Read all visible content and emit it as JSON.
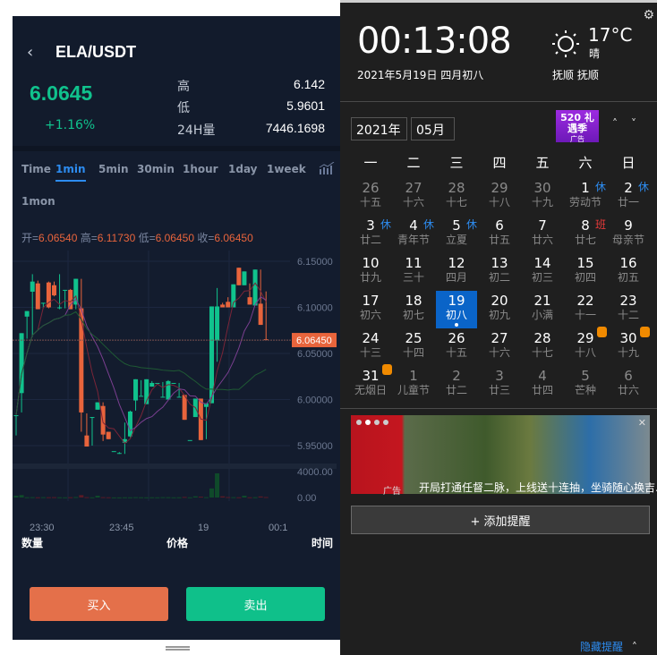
{
  "trading": {
    "back_icon": "chevron-left-icon",
    "pair": "ELA/USDT",
    "price": "6.0645",
    "change": "+1.16%",
    "stats": [
      {
        "label": "高",
        "value": "6.142"
      },
      {
        "label": "低",
        "value": "5.9601"
      },
      {
        "label": "24H量",
        "value": "7446.1698"
      }
    ],
    "tabs": [
      "Time",
      "1min",
      "5min",
      "30min",
      "1hour",
      "1day",
      "1week",
      "1mon"
    ],
    "active_tab": "1min",
    "ohlc": {
      "open_label": "开=",
      "open": "6.06540",
      "high_label": "高=",
      "high": "6.11730",
      "low_label": "低=",
      "low": "6.06450",
      "close_label": "收=",
      "close": "6.06450"
    },
    "orderbook_headers": [
      "数量",
      "价格",
      "时间"
    ],
    "buy_label": "买入",
    "sell_label": "卖出",
    "colors": {
      "up": "#10c28d",
      "down": "#e8643c",
      "accent": "#2d8cf0"
    }
  },
  "chart_data": {
    "type": "candlestick",
    "ylim": [
      5.93,
      6.16
    ],
    "y_ticks": [
      "6.15000",
      "6.10000",
      "6.05000",
      "6.00000",
      "5.95000"
    ],
    "y_tick_values": [
      6.15,
      6.1,
      6.05,
      6.0,
      5.95
    ],
    "last_price_label": "6.06450",
    "last_price": 6.0645,
    "x_ticks": [
      "23:30",
      "23:45",
      "19",
      "00:1"
    ],
    "volume_ticks": [
      "4000.00",
      "0.00"
    ],
    "candles": [
      [
        5.982,
        5.985,
        5.961,
        5.983
      ],
      [
        6.007,
        6.072,
        5.986,
        6.072
      ],
      [
        6.09,
        6.096,
        6.066,
        6.096
      ],
      [
        6.117,
        6.136,
        6.068,
        6.128
      ],
      [
        6.126,
        6.129,
        6.098,
        6.098
      ],
      [
        6.104,
        6.105,
        6.099,
        6.105
      ],
      [
        6.127,
        6.128,
        6.099,
        6.1
      ],
      [
        6.124,
        6.128,
        6.112,
        6.113
      ],
      [
        6.099,
        6.136,
        6.098,
        6.1
      ],
      [
        6.119,
        6.119,
        6.099,
        6.119
      ],
      [
        6.119,
        6.12,
        6.098,
        6.098
      ],
      [
        6.103,
        6.131,
        6.098,
        6.131
      ],
      [
        6.099,
        6.131,
        5.965,
        5.986
      ],
      [
        5.961,
        5.985,
        5.949,
        5.949
      ],
      [
        5.981,
        5.981,
        5.95,
        5.981
      ],
      [
        5.989,
        5.997,
        5.989,
        5.997
      ],
      [
        5.993,
        5.997,
        5.955,
        5.962
      ],
      [
        5.965,
        5.965,
        5.957,
        5.957
      ],
      [
        5.944,
        5.944,
        5.944,
        5.944
      ],
      [
        5.942,
        5.943,
        5.941,
        5.942
      ],
      [
        5.953,
        5.975,
        5.941,
        5.957
      ],
      [
        5.96,
        5.988,
        5.959,
        5.987
      ],
      [
        5.999,
        6.022,
        5.988,
        6.022
      ],
      [
        6.004,
        6.021,
        6.004,
        6.004
      ],
      [
        5.995,
        6.022,
        5.995,
        6.022
      ],
      [
        6.014,
        6.02,
        6.014,
        6.018
      ],
      [
        6.018,
        6.018,
        6.018,
        6.018
      ],
      [
        6.003,
        6.019,
        6.003,
        6.003
      ],
      [
        6.0,
        6.021,
        6.0,
        6.02
      ],
      [
        6.018,
        6.018,
        6.018,
        6.018
      ],
      [
        6.003,
        6.018,
        6.003,
        6.003
      ],
      [
        6.005,
        6.005,
        5.978,
        5.978
      ],
      [
        5.956,
        5.956,
        5.956,
        5.956
      ],
      [
        5.981,
        6.001,
        5.981,
        6.001
      ],
      [
        6.001,
        6.001,
        5.956,
        5.956
      ],
      [
        5.992,
        5.996,
        5.957,
        5.996
      ],
      [
        5.996,
        6.101,
        5.996,
        6.101
      ],
      [
        6.064,
        6.121,
        6.041,
        6.101
      ],
      [
        6.103,
        6.105,
        6.1,
        6.1
      ],
      [
        6.106,
        6.111,
        6.1,
        6.1
      ],
      [
        6.1,
        6.125,
        6.1,
        6.125
      ],
      [
        6.143,
        6.143,
        6.124,
        6.124
      ],
      [
        6.124,
        6.139,
        6.124,
        6.139
      ],
      [
        6.111,
        6.126,
        6.103,
        6.103
      ],
      [
        6.102,
        6.141,
        6.102,
        6.141
      ],
      [
        6.104,
        6.141,
        6.081,
        6.081
      ],
      [
        6.0654,
        6.1173,
        6.0645,
        6.0645
      ]
    ],
    "volumes": [
      300,
      400,
      50,
      60,
      40,
      60,
      50,
      60,
      40,
      30,
      50,
      80,
      400,
      60,
      30,
      300,
      60,
      40,
      20,
      20,
      40,
      30,
      60,
      40,
      30,
      40,
      30,
      60,
      50,
      30,
      40,
      100,
      30,
      200,
      140,
      60,
      1500,
      4000,
      200,
      80,
      60,
      40,
      300,
      40,
      50,
      180,
      80
    ]
  },
  "calendar": {
    "time": "00:13:08",
    "date": "2021年5月19日 四月初八",
    "weather_icon": "sun-icon",
    "temperature": "17°C",
    "weather": "晴",
    "city": "抚顺 抚顺",
    "year": "2021年",
    "month": "05月",
    "ad_icon_text": "520 礼遇季",
    "ad_icon_sub": "广告",
    "weekdays": [
      "一",
      "二",
      "三",
      "四",
      "五",
      "六",
      "日"
    ],
    "days": [
      {
        "n": "26",
        "l": "十五",
        "o": 1
      },
      {
        "n": "27",
        "l": "十六",
        "o": 1
      },
      {
        "n": "28",
        "l": "十七",
        "o": 1
      },
      {
        "n": "29",
        "l": "十八",
        "o": 1
      },
      {
        "n": "30",
        "l": "十九",
        "o": 1
      },
      {
        "n": "1",
        "l": "劳动节",
        "b": "休"
      },
      {
        "n": "2",
        "l": "廿一",
        "b": "休"
      },
      {
        "n": "3",
        "l": "廿二",
        "b": "休"
      },
      {
        "n": "4",
        "l": "青年节",
        "b": "休"
      },
      {
        "n": "5",
        "l": "立夏",
        "b": "休"
      },
      {
        "n": "6",
        "l": "廿五"
      },
      {
        "n": "7",
        "l": "廿六"
      },
      {
        "n": "8",
        "l": "廿七",
        "b": "班"
      },
      {
        "n": "9",
        "l": "母亲节"
      },
      {
        "n": "10",
        "l": "廿九"
      },
      {
        "n": "11",
        "l": "三十"
      },
      {
        "n": "12",
        "l": "四月"
      },
      {
        "n": "13",
        "l": "初二"
      },
      {
        "n": "14",
        "l": "初三"
      },
      {
        "n": "15",
        "l": "初四"
      },
      {
        "n": "16",
        "l": "初五"
      },
      {
        "n": "17",
        "l": "初六"
      },
      {
        "n": "18",
        "l": "初七"
      },
      {
        "n": "19",
        "l": "初八",
        "s": 1
      },
      {
        "n": "20",
        "l": "初九"
      },
      {
        "n": "21",
        "l": "小满"
      },
      {
        "n": "22",
        "l": "十一"
      },
      {
        "n": "23",
        "l": "十二"
      },
      {
        "n": "24",
        "l": "十三"
      },
      {
        "n": "25",
        "l": "十四"
      },
      {
        "n": "26",
        "l": "十五"
      },
      {
        "n": "27",
        "l": "十六"
      },
      {
        "n": "28",
        "l": "十七"
      },
      {
        "n": "29",
        "l": "十八",
        "t": 1
      },
      {
        "n": "30",
        "l": "十九",
        "t": 1
      },
      {
        "n": "31",
        "l": "无烟日",
        "t": 1
      },
      {
        "n": "1",
        "l": "儿童节",
        "o": 1
      },
      {
        "n": "2",
        "l": "廿二",
        "o": 1
      },
      {
        "n": "3",
        "l": "廿三",
        "o": 1
      },
      {
        "n": "4",
        "l": "廿四",
        "o": 1
      },
      {
        "n": "5",
        "l": "芒种",
        "o": 1
      },
      {
        "n": "6",
        "l": "廿六",
        "o": 1
      }
    ],
    "banner_text": "开局打通任督二脉，上线送十连抽，坐骑随心换吉..",
    "banner_ad_label": "广告",
    "add_reminder": "+ 添加提醒",
    "hide_reminder": "隐藏提醒",
    "colors": {
      "selected": "#0a64c8",
      "rest": "#2d8cf0",
      "work": "#e83a3a",
      "train": "#f08a00"
    }
  }
}
